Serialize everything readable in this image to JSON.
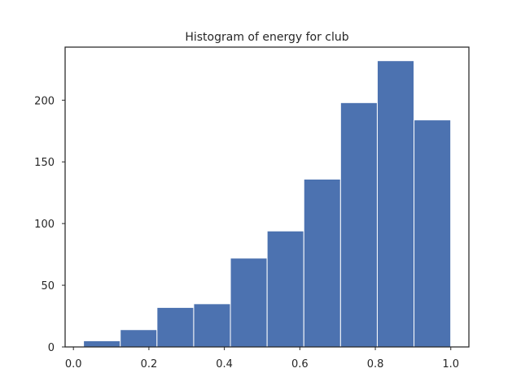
{
  "chart_data": {
    "type": "bar",
    "title": "Histogram of energy for club",
    "xlabel": "",
    "ylabel": "",
    "bin_edges": [
      0.0268,
      0.1241,
      0.2214,
      0.3187,
      0.416,
      0.5133,
      0.6106,
      0.7079,
      0.8052,
      0.9025,
      0.9998
    ],
    "counts": [
      5,
      14,
      32,
      35,
      72,
      94,
      136,
      198,
      232,
      184
    ],
    "xlim": [
      -0.022,
      1.048
    ],
    "ylim": [
      0,
      243
    ],
    "xticks": [
      0.0,
      0.2,
      0.4,
      0.6,
      0.8,
      1.0
    ],
    "xtick_labels": [
      "0.0",
      "0.2",
      "0.4",
      "0.6",
      "0.8",
      "1.0"
    ],
    "yticks": [
      0,
      50,
      100,
      150,
      200
    ],
    "ytick_labels": [
      "0",
      "50",
      "100",
      "150",
      "200"
    ],
    "color": "#4c72b0",
    "grid": false,
    "legend": "none"
  }
}
